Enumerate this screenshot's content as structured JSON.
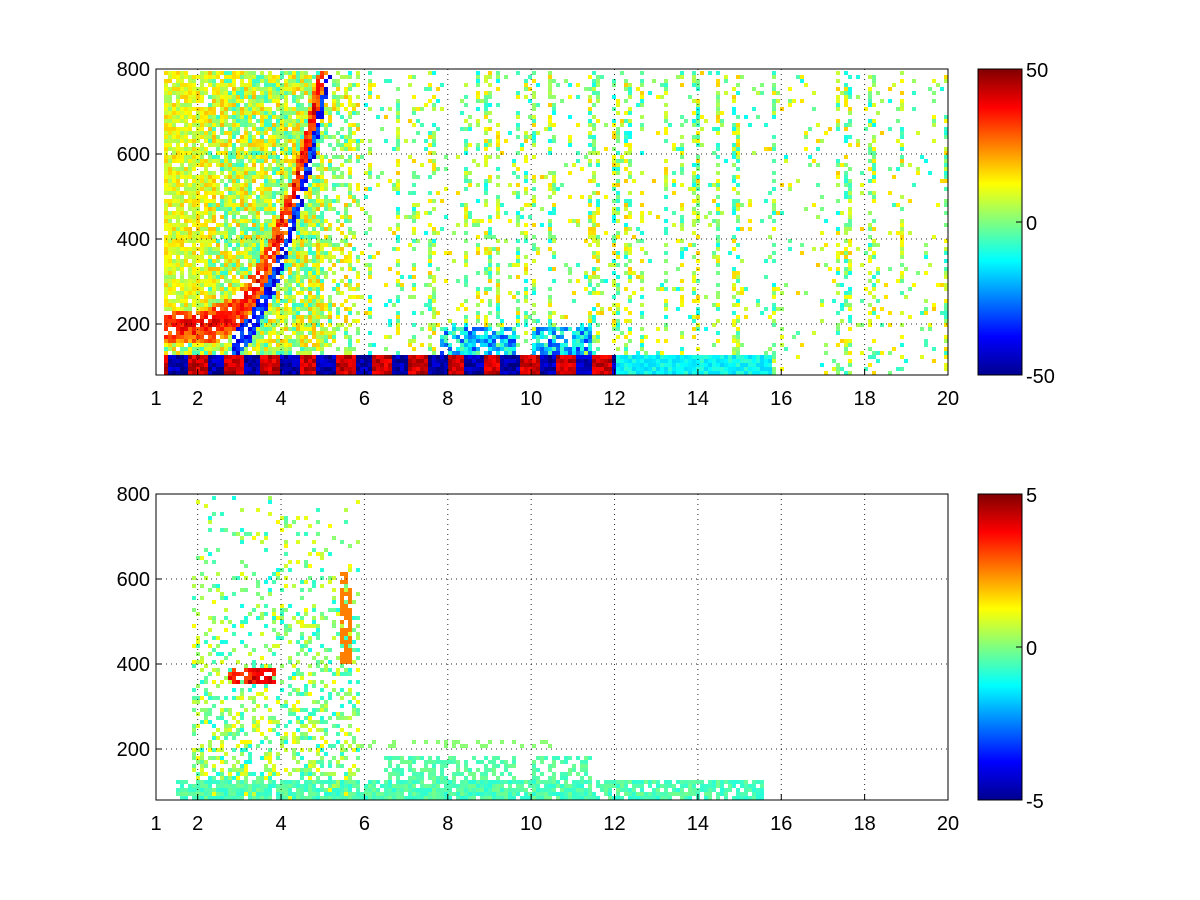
{
  "chart_data": [
    {
      "type": "heatmap",
      "title": "",
      "xlabel": "",
      "ylabel": "",
      "xlim": [
        1,
        20
      ],
      "ylim": [
        80,
        800
      ],
      "x_ticks": [
        "1",
        "2",
        "4",
        "6",
        "8",
        "10",
        "12",
        "14",
        "16",
        "18",
        "20"
      ],
      "y_ticks": [
        "200",
        "400",
        "600",
        "800"
      ],
      "grid": true,
      "colormap": "jet",
      "colorbar": {
        "min": -50,
        "max": 50,
        "tick_labels": [
          "50",
          "0",
          "-50"
        ],
        "placement": "right"
      },
      "features": [
        {
          "name": "diagonal band (positive then negative)",
          "x_range": [
            2.3,
            5.0
          ],
          "y_range": [
            200,
            800
          ],
          "value_range": [
            -50,
            50
          ]
        },
        {
          "name": "horizontal band",
          "y": 110,
          "x_range": [
            1.2,
            12.0
          ],
          "value_range": [
            -50,
            50
          ]
        },
        {
          "name": "horizontal band weak",
          "y": 110,
          "x_range": [
            12.0,
            15.8
          ],
          "value_range": [
            -15,
            0
          ]
        },
        {
          "name": "scattered pixels",
          "x_range": [
            5.5,
            20
          ],
          "y_range": [
            80,
            800
          ],
          "value_range": [
            -15,
            20
          ]
        }
      ]
    },
    {
      "type": "heatmap",
      "title": "",
      "xlabel": "",
      "ylabel": "",
      "xlim": [
        1,
        20
      ],
      "ylim": [
        80,
        800
      ],
      "x_ticks": [
        "1",
        "2",
        "4",
        "6",
        "8",
        "10",
        "12",
        "14",
        "16",
        "18",
        "20"
      ],
      "y_ticks": [
        "200",
        "400",
        "600",
        "800"
      ],
      "grid": true,
      "colormap": "jet",
      "colorbar": {
        "min": -5,
        "max": 5,
        "tick_labels": [
          "5",
          "0",
          "-5"
        ],
        "placement": "right"
      },
      "features": [
        {
          "name": "diffuse region",
          "x_range": [
            2.0,
            5.8
          ],
          "y_range": [
            80,
            800
          ],
          "value_range": [
            -1,
            1.5
          ]
        },
        {
          "name": "red patch",
          "x": 3.0,
          "y": 380,
          "value": 4.5
        },
        {
          "name": "horizontal band",
          "y": 110,
          "x_range": [
            1.5,
            15.5
          ],
          "value_range": [
            -1,
            0
          ]
        }
      ]
    }
  ]
}
